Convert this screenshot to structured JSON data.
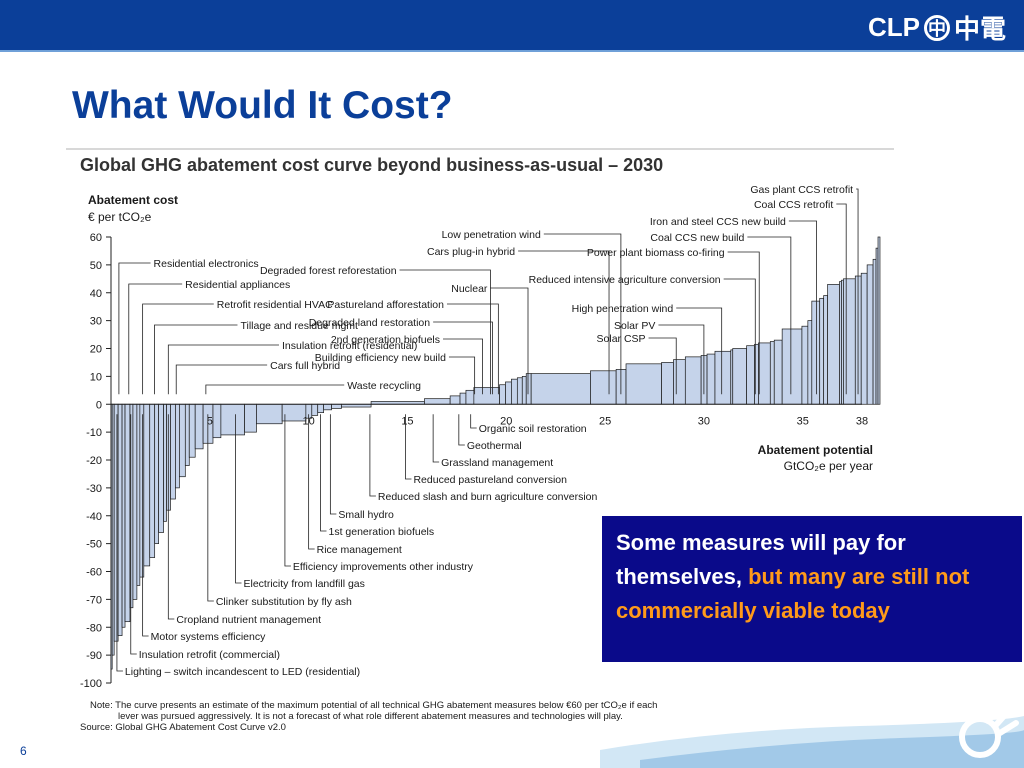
{
  "header": {
    "logo_text": "CLP",
    "logo_chinese": "中電",
    "logo_mark_glyph": "中"
  },
  "slide": {
    "title": "What Would It Cost?",
    "number": "6"
  },
  "callout": {
    "text_white": "Some measures will pay for themselves,",
    "text_orange": " but many are still not commercially viable today"
  },
  "note": {
    "line1": "Note: The curve presents an estimate of the maximum potential of all technical GHG abatement measures below €60 per tCO₂e if each",
    "line2": "lever was pursued aggressively. It is not a forecast of what role different abatement measures and technologies will play.",
    "source": "Source: Global GHG Abatement Cost Curve v2.0"
  },
  "colors": {
    "brand_blue": "#0b3f99",
    "bar_fill": "#c5d3ea",
    "bar_stroke": "#1a1a1a",
    "callout_bg": "#0a0a8a",
    "callout_highlight": "#ff9a1a"
  },
  "chart_data": {
    "type": "bar",
    "title": "Global GHG abatement cost curve beyond business-as-usual – 2030",
    "ylabel": "Abatement cost",
    "yunit": "€ per tCO₂e",
    "xlabel": "Abatement potential",
    "xunit": "GtCO₂e per year",
    "xlim": [
      0,
      38
    ],
    "ylim": [
      -100,
      60
    ],
    "xticks": [
      "5",
      "10",
      "15",
      "20",
      "25",
      "30",
      "35",
      "38"
    ],
    "yticks": [
      "60",
      "50",
      "40",
      "30",
      "20",
      "10",
      "0",
      "-10",
      "-20",
      "-30",
      "-40",
      "-50",
      "-60",
      "-70",
      "-80",
      "-90",
      "-100"
    ],
    "bars": [
      {
        "w": 0.06,
        "c": -95
      },
      {
        "w": 0.1,
        "c": -90
      },
      {
        "w": 0.2,
        "c": -85
      },
      {
        "w": 0.2,
        "c": -83
      },
      {
        "w": 0.15,
        "c": -80
      },
      {
        "w": 0.25,
        "c": -78
      },
      {
        "w": 0.15,
        "c": -73
      },
      {
        "w": 0.2,
        "c": -70
      },
      {
        "w": 0.15,
        "c": -65
      },
      {
        "w": 0.2,
        "c": -62
      },
      {
        "w": 0.3,
        "c": -58
      },
      {
        "w": 0.25,
        "c": -55
      },
      {
        "w": 0.2,
        "c": -50
      },
      {
        "w": 0.25,
        "c": -46
      },
      {
        "w": 0.15,
        "c": -42
      },
      {
        "w": 0.2,
        "c": -38
      },
      {
        "w": 0.25,
        "c": -34
      },
      {
        "w": 0.2,
        "c": -30
      },
      {
        "w": 0.3,
        "c": -26
      },
      {
        "w": 0.2,
        "c": -22
      },
      {
        "w": 0.3,
        "c": -19
      },
      {
        "w": 0.4,
        "c": -16
      },
      {
        "w": 0.5,
        "c": -14
      },
      {
        "w": 0.4,
        "c": -12
      },
      {
        "w": 1.2,
        "c": -11
      },
      {
        "w": 0.6,
        "c": -10
      },
      {
        "w": 1.3,
        "c": -7
      },
      {
        "w": 1.2,
        "c": -6
      },
      {
        "w": 0.3,
        "c": -5
      },
      {
        "w": 0.3,
        "c": -4
      },
      {
        "w": 0.3,
        "c": -3
      },
      {
        "w": 0.4,
        "c": -2
      },
      {
        "w": 0.5,
        "c": -1.5
      },
      {
        "w": 1.5,
        "c": -1
      },
      {
        "w": 2.7,
        "c": 1
      },
      {
        "w": 1.3,
        "c": 2
      },
      {
        "w": 0.5,
        "c": 3
      },
      {
        "w": 0.3,
        "c": 4
      },
      {
        "w": 0.4,
        "c": 5
      },
      {
        "w": 1.3,
        "c": 6
      },
      {
        "w": 0.3,
        "c": 7
      },
      {
        "w": 0.3,
        "c": 8
      },
      {
        "w": 0.3,
        "c": 9
      },
      {
        "w": 0.25,
        "c": 9.5
      },
      {
        "w": 0.2,
        "c": 10
      },
      {
        "w": 0.25,
        "c": 11
      },
      {
        "w": 3.0,
        "c": 11
      },
      {
        "w": 1.3,
        "c": 12
      },
      {
        "w": 0.5,
        "c": 12.5
      },
      {
        "w": 1.8,
        "c": 14.5
      },
      {
        "w": 0.6,
        "c": 15
      },
      {
        "w": 0.6,
        "c": 16
      },
      {
        "w": 0.8,
        "c": 17
      },
      {
        "w": 0.3,
        "c": 17.5
      },
      {
        "w": 0.4,
        "c": 18
      },
      {
        "w": 0.8,
        "c": 19
      },
      {
        "w": 0.1,
        "c": 19.5
      },
      {
        "w": 0.7,
        "c": 20
      },
      {
        "w": 0.4,
        "c": 21
      },
      {
        "w": 0.2,
        "c": 21.5
      },
      {
        "w": 0.6,
        "c": 22
      },
      {
        "w": 0.2,
        "c": 22.5
      },
      {
        "w": 0.4,
        "c": 23
      },
      {
        "w": 1.0,
        "c": 27
      },
      {
        "w": 0.3,
        "c": 28
      },
      {
        "w": 0.2,
        "c": 30
      },
      {
        "w": 0.4,
        "c": 37
      },
      {
        "w": 0.2,
        "c": 38
      },
      {
        "w": 0.2,
        "c": 39
      },
      {
        "w": 0.6,
        "c": 43
      },
      {
        "w": 0.1,
        "c": 44
      },
      {
        "w": 0.1,
        "c": 44.5
      },
      {
        "w": 0.6,
        "c": 45
      },
      {
        "w": 0.3,
        "c": 46
      },
      {
        "w": 0.3,
        "c": 47
      },
      {
        "w": 0.3,
        "c": 50
      },
      {
        "w": 0.15,
        "c": 52
      },
      {
        "w": 0.1,
        "c": 56
      },
      {
        "w": 0.1,
        "c": 60
      }
    ],
    "labels_top": [
      {
        "text": "Residential electronics",
        "x": 0.4
      },
      {
        "text": "Residential appliances",
        "x": 0.9
      },
      {
        "text": "Retrofit residential HVAC",
        "x": 1.6
      },
      {
        "text": "Tillage and residue mgmt",
        "x": 2.2
      },
      {
        "text": "Insulation retrofit (residential)",
        "x": 2.9
      },
      {
        "text": "Cars full hybrid",
        "x": 3.3
      },
      {
        "text": "Waste recycling",
        "x": 4.8
      },
      {
        "text": "Low penetration wind",
        "x": 25.8
      },
      {
        "text": "Cars plug-in hybrid",
        "x": 25.2
      },
      {
        "text": "Degraded forest reforestation",
        "x": 19.2
      },
      {
        "text": "Nuclear",
        "x": 21.1
      },
      {
        "text": "Pastureland afforestation",
        "x": 19.6
      },
      {
        "text": "Degraded land restoration",
        "x": 19.3
      },
      {
        "text": "2nd generation biofuels",
        "x": 18.8
      },
      {
        "text": "Building efficiency new build",
        "x": 18.4
      },
      {
        "text": "Gas plant CCS retrofit",
        "x": 37.8
      },
      {
        "text": "Coal CCS retrofit",
        "x": 37.2
      },
      {
        "text": "Iron and steel CCS new build",
        "x": 35.7
      },
      {
        "text": "Coal CCS new build",
        "x": 34.4
      },
      {
        "text": "Power plant biomass co-firing",
        "x": 32.8
      },
      {
        "text": "Reduced intensive agriculture conversion",
        "x": 32.6
      },
      {
        "text": "High penetration wind",
        "x": 30.9
      },
      {
        "text": "Solar PV",
        "x": 30.0
      },
      {
        "text": "Solar CSP",
        "x": 28.6
      }
    ],
    "labels_bottom": [
      {
        "text": "Organic soil restoration",
        "x": 18.2
      },
      {
        "text": "Geothermal",
        "x": 17.6
      },
      {
        "text": "Grassland management",
        "x": 16.3
      },
      {
        "text": "Reduced pastureland conversion",
        "x": 14.9
      },
      {
        "text": "Reduced slash and burn agriculture conversion",
        "x": 13.1
      },
      {
        "text": "Small hydro",
        "x": 11.1
      },
      {
        "text": "1st generation biofuels",
        "x": 10.6
      },
      {
        "text": "Rice management",
        "x": 10.0
      },
      {
        "text": "Efficiency improvements other industry",
        "x": 8.8
      },
      {
        "text": "Electricity from landfill gas",
        "x": 6.3
      },
      {
        "text": "Clinker substitution by fly ash",
        "x": 4.9
      },
      {
        "text": "Cropland nutrient management",
        "x": 2.9
      },
      {
        "text": "Motor systems efficiency",
        "x": 1.6
      },
      {
        "text": "Insulation retrofit (commercial)",
        "x": 1.0
      },
      {
        "text": "Lighting – switch incandescent to LED (residential)",
        "x": 0.3
      }
    ]
  }
}
